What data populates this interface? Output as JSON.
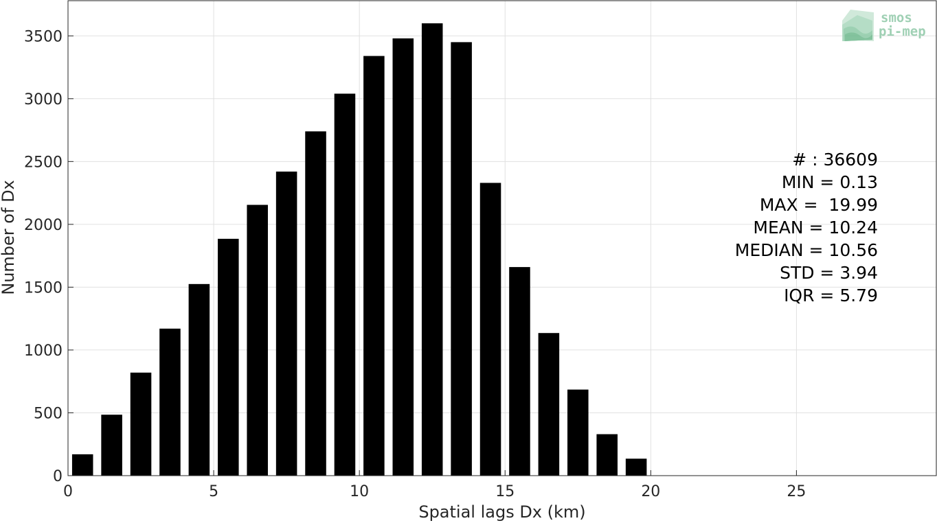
{
  "chart_data": {
    "type": "bar",
    "xlabel": "Spatial lags Dx (km)",
    "ylabel": "Number of Dx",
    "xlim": [
      0,
      29.8
    ],
    "ylim": [
      0,
      3780
    ],
    "grid": true,
    "bar_width": 0.72,
    "bar_color": "#000000",
    "xticks": [
      0,
      5,
      10,
      15,
      20,
      25
    ],
    "yticks": [
      0,
      500,
      1000,
      1500,
      2000,
      2500,
      3000,
      3500
    ],
    "x": [
      0.5,
      1.5,
      2.5,
      3.5,
      4.5,
      5.5,
      6.5,
      7.5,
      8.5,
      9.5,
      10.5,
      11.5,
      12.5,
      13.5,
      14.5,
      15.5,
      16.5,
      17.5,
      18.5,
      19.5
    ],
    "values": [
      170,
      485,
      820,
      1170,
      1525,
      1885,
      2155,
      2420,
      2740,
      3040,
      3340,
      3480,
      3600,
      3450,
      2330,
      1660,
      1135,
      685,
      330,
      135
    ]
  },
  "stats": {
    "lines": [
      "# : 36609",
      "MIN = 0.13",
      "MAX =  19.99",
      "MEAN = 10.24",
      "MEDIAN = 10.56",
      "STD = 3.94",
      "IQR = 5.79"
    ]
  },
  "logo": {
    "line1": "smos",
    "line2": "pi-mep",
    "icon": "smos-pimep-logo-icon",
    "color": "#9fd0b4"
  }
}
